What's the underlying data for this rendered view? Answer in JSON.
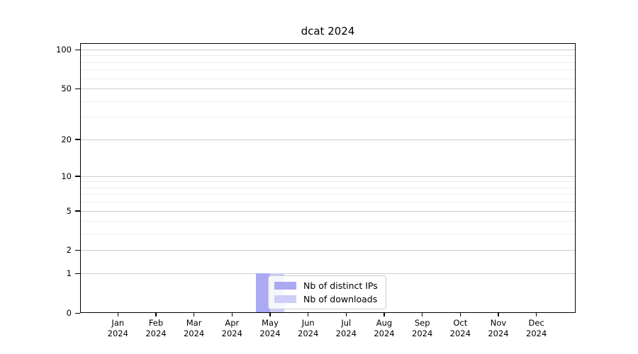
{
  "chart_data": {
    "type": "bar",
    "title": "dcat 2024",
    "categories": [
      "Jan",
      "Feb",
      "Mar",
      "Apr",
      "May",
      "Jun",
      "Jul",
      "Aug",
      "Sep",
      "Oct",
      "Nov",
      "Dec"
    ],
    "x_year": "2024",
    "series": [
      {
        "name": "Nb of distinct IPs",
        "color": "#a9a9f4",
        "values": [
          0,
          0,
          0,
          0,
          1,
          0,
          0,
          0,
          0,
          0,
          0,
          0
        ]
      },
      {
        "name": "Nb of downloads",
        "color": "#cdcdf7",
        "values": [
          0,
          0,
          0,
          0,
          1,
          0,
          0,
          0,
          0,
          0,
          0,
          0
        ]
      }
    ],
    "yscale": "log1p",
    "ylim": [
      0,
      100
    ],
    "yticks": [
      0,
      1,
      2,
      5,
      10,
      20,
      50,
      100
    ],
    "yminorticks": [
      3,
      4,
      6,
      7,
      8,
      9,
      30,
      40,
      60,
      70,
      80,
      90
    ],
    "grid": true,
    "legend_position": "inside lower-center",
    "colors": {
      "axis": "#000000",
      "grid_major": "#cccccc",
      "grid_minor": "#ededed",
      "background": "#ffffff",
      "legend_border": "#cccccc",
      "legend_bg": "#ffffff",
      "text": "#000000"
    }
  }
}
